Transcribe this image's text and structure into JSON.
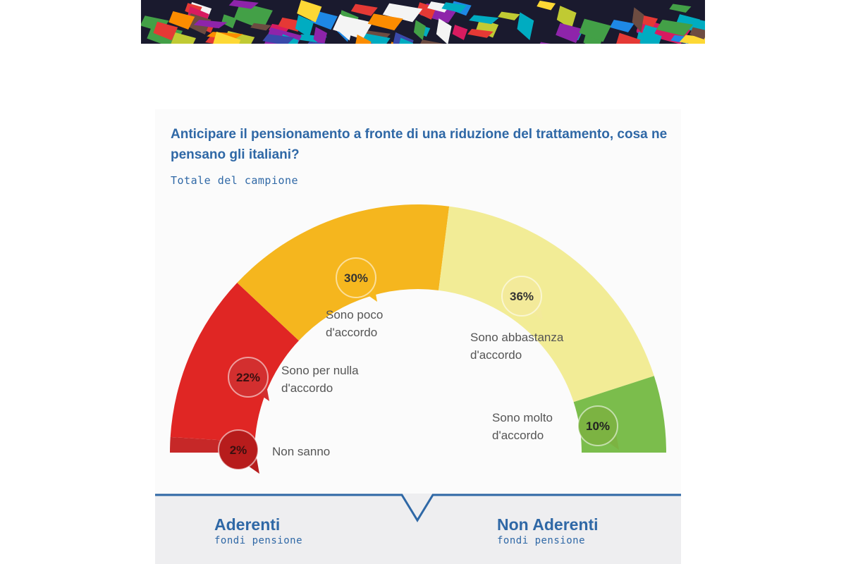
{
  "banner": {
    "icon": "crowd-illustration"
  },
  "title": "Anticipare il pensionamento a fronte di una riduzione del trattamento, cosa ne pensano gli italiani?",
  "subtitle": "Totale del campione",
  "chart_data": {
    "type": "pie",
    "variant": "semicircle-gauge",
    "title": "Anticipare il pensionamento a fronte di una riduzione del trattamento, cosa ne pensano gli italiani?",
    "subtitle": "Totale del campione",
    "unit": "%",
    "slices": [
      {
        "label": "Non sanno",
        "value": 2,
        "display": "2%",
        "color": "#c62828",
        "bubble": "#b71c1c",
        "badge_text": "#3a1010"
      },
      {
        "label": "Sono per nulla\nd'accordo",
        "value": 22,
        "display": "22%",
        "color": "#e02624",
        "bubble": "#d32f2f",
        "badge_text": "#3a1010"
      },
      {
        "label": "Sono poco\nd'accordo",
        "value": 30,
        "display": "30%",
        "color": "#f5b61e",
        "bubble": "#f6b81f",
        "badge_text": "#333333"
      },
      {
        "label": "Sono abbastanza\nd'accordo",
        "value": 36,
        "display": "36%",
        "color": "#f2ec96",
        "bubble": "#f3ea9a",
        "badge_text": "#333333"
      },
      {
        "label": "Sono molto\nd'accordo",
        "value": 10,
        "display": "10%",
        "color": "#7bbd4c",
        "bubble": "#7cb342",
        "badge_text": "#222222"
      }
    ]
  },
  "groups": [
    {
      "title": "Aderenti",
      "subtitle": "fondi pensione"
    },
    {
      "title": "Non Aderenti",
      "subtitle": "fondi pensione"
    }
  ],
  "colors": {
    "accent": "#2f68a6",
    "text": "#555555",
    "panel": "#eeeef0"
  }
}
